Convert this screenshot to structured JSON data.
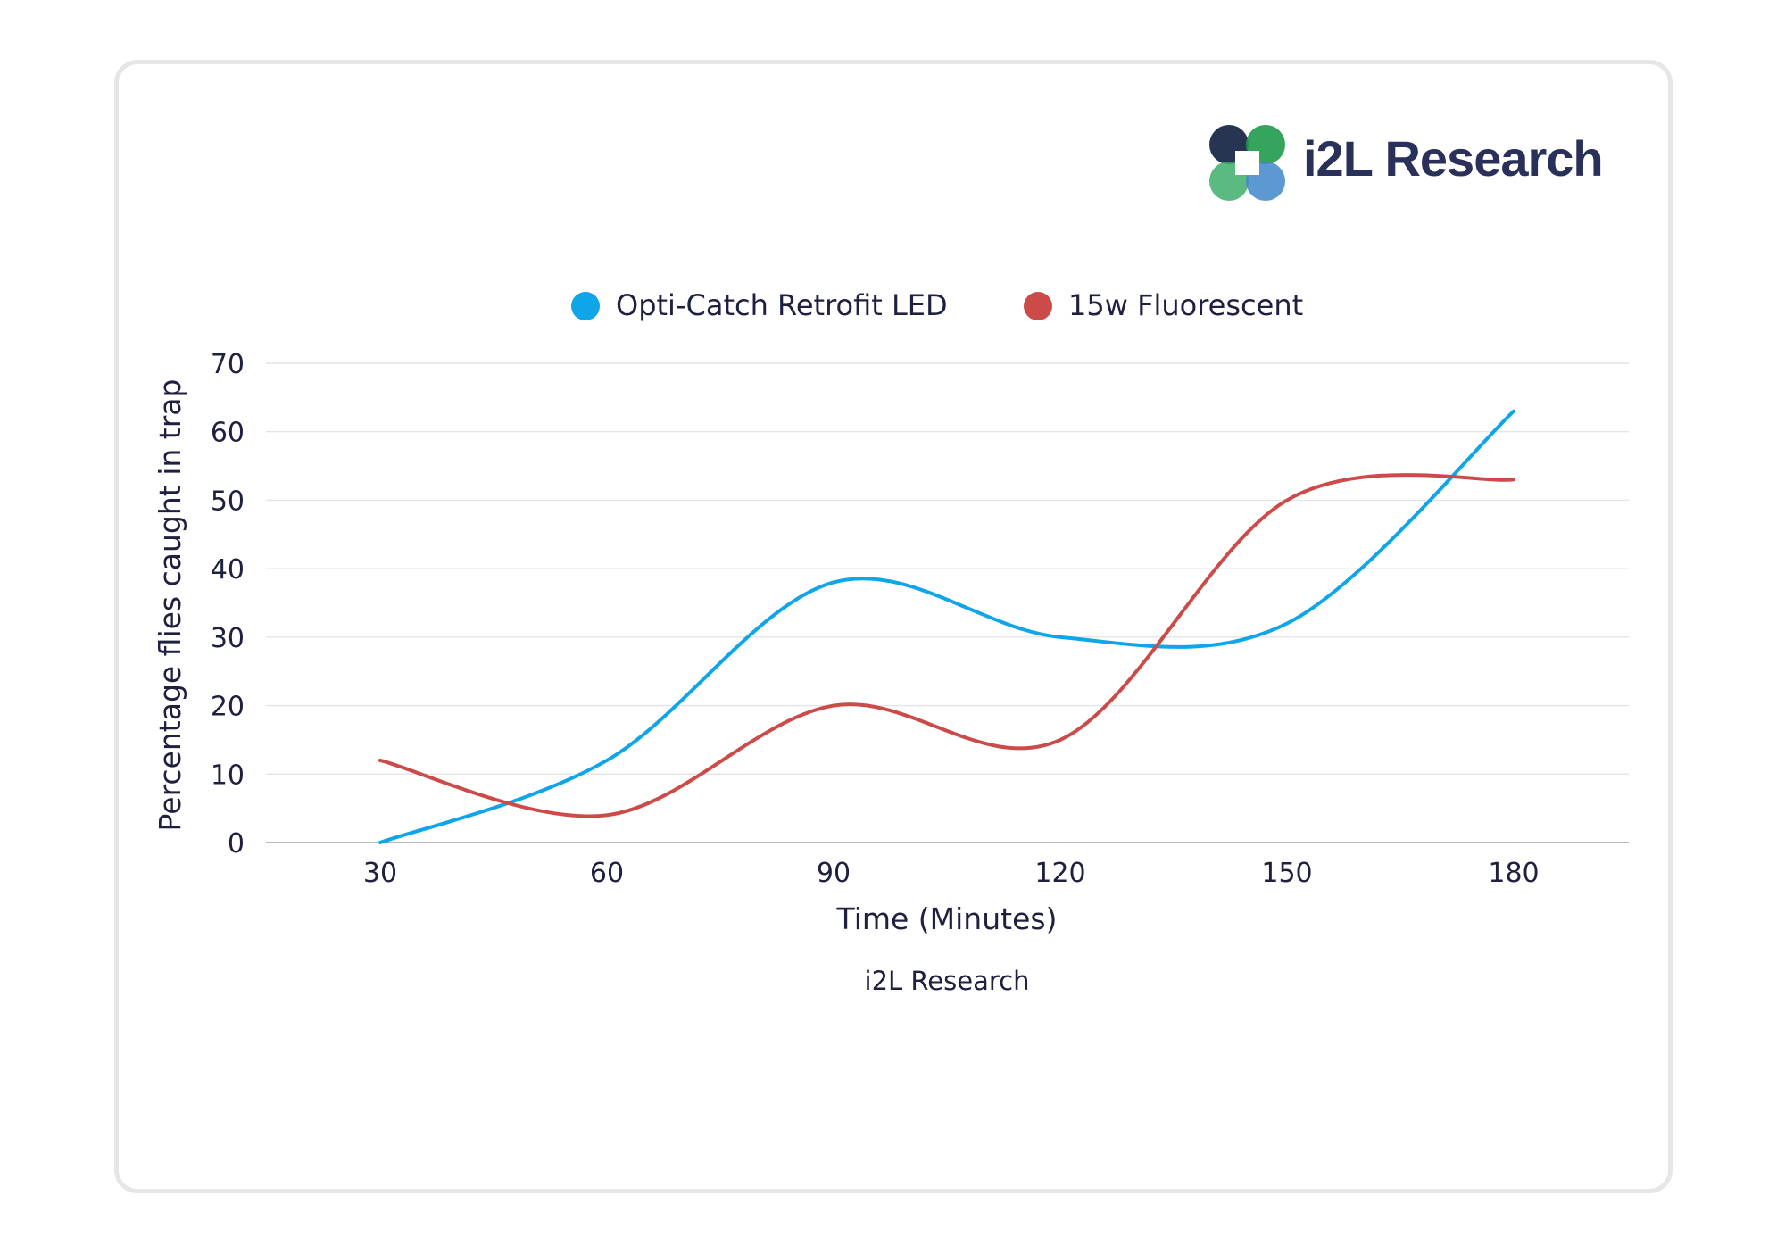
{
  "logo": {
    "text": "i2L Research",
    "colors": [
      "#1b2a4a",
      "#1f9a4b",
      "#3f86c9"
    ]
  },
  "chart_data": {
    "type": "line",
    "title": "",
    "xlabel": "Time (Minutes)",
    "ylabel": "Percentage flies caught in trap",
    "caption": "i2L Research",
    "categories": [
      "30",
      "60",
      "90",
      "120",
      "150",
      "180"
    ],
    "x": [
      30,
      60,
      90,
      120,
      150,
      180
    ],
    "y_ticks": [
      0,
      10,
      20,
      30,
      40,
      50,
      60,
      70
    ],
    "ylim": [
      0,
      70
    ],
    "grid": true,
    "smooth": true,
    "legend_position": "top",
    "series": [
      {
        "name": "Opti-Catch Retrofit LED",
        "color": "#0ea5e9",
        "values": [
          0,
          12,
          38,
          30,
          32,
          63
        ]
      },
      {
        "name": "15w Fluorescent",
        "color": "#cc4b48",
        "values": [
          12,
          4,
          20,
          15,
          50,
          53
        ]
      }
    ]
  }
}
